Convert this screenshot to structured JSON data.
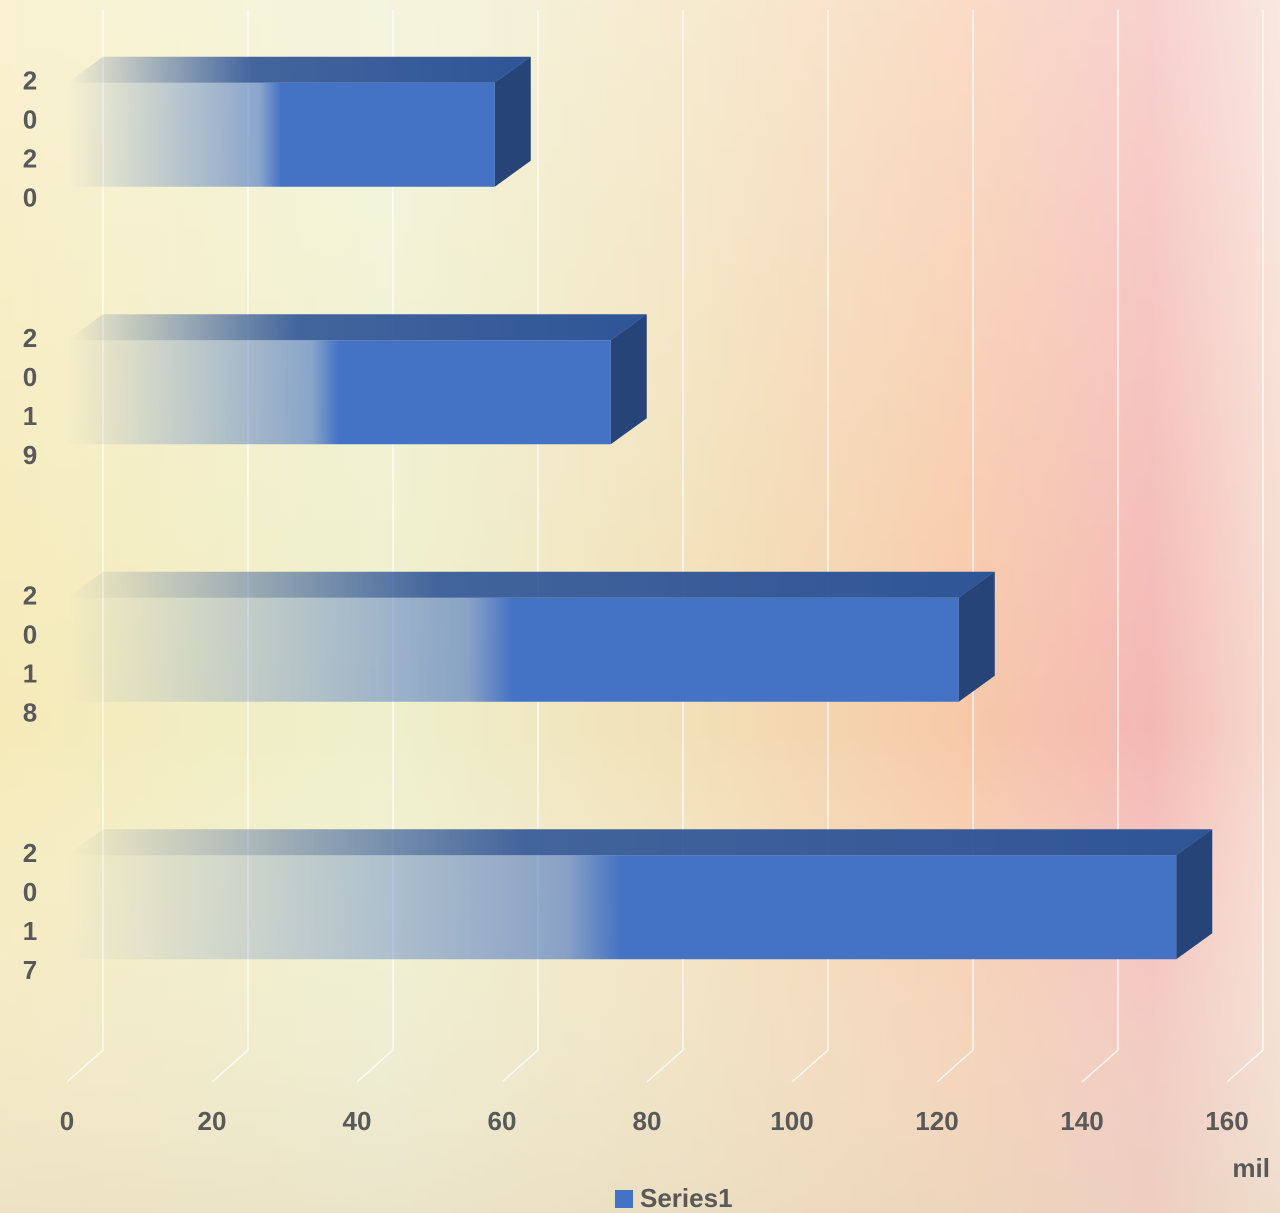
{
  "chart_data": {
    "type": "bar3d_horizontal",
    "categories": [
      "2017",
      "2018",
      "2019",
      "2020"
    ],
    "series": [
      {
        "name": "Series1",
        "color": "#4472c4",
        "values": [
          153,
          123,
          75,
          59
        ]
      }
    ],
    "xlim": [
      0,
      160
    ],
    "xticks": [
      0,
      20,
      40,
      60,
      80,
      100,
      120,
      140,
      160
    ],
    "x_label": "mil",
    "grid": true,
    "legend": "bottom"
  }
}
